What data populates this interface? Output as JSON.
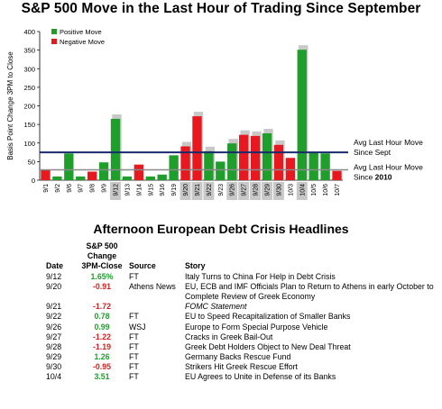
{
  "title": "S&P 500 Move in the Last Hour of Trading Since September",
  "chart_data": {
    "type": "bar",
    "ylabel": "Basis Point Change 3PM to Close",
    "ylim": [
      0,
      400
    ],
    "yticks": [
      0,
      50,
      100,
      150,
      200,
      250,
      300,
      350,
      400
    ],
    "categories": [
      "9/1",
      "9/2",
      "9/6",
      "9/7",
      "9/8",
      "9/9",
      "9/12",
      "9/13",
      "9/14",
      "9/15",
      "9/16",
      "9/19",
      "9/20",
      "9/21",
      "9/22",
      "9/23",
      "9/26",
      "9/27",
      "9/28",
      "9/29",
      "9/30",
      "10/3",
      "10/4",
      "10/5",
      "10/6",
      "10/7"
    ],
    "values": [
      28,
      10,
      72,
      10,
      23,
      48,
      165,
      10,
      42,
      10,
      15,
      67,
      91,
      172,
      78,
      50,
      99,
      122,
      119,
      126,
      95,
      60,
      351,
      75,
      72,
      25
    ],
    "directions": [
      "neg",
      "pos",
      "pos",
      "pos",
      "neg",
      "pos",
      "pos",
      "pos",
      "neg",
      "pos",
      "pos",
      "pos",
      "neg",
      "neg",
      "pos",
      "pos",
      "pos",
      "neg",
      "neg",
      "pos",
      "neg",
      "neg",
      "pos",
      "pos",
      "pos",
      "neg"
    ],
    "highlighted": [
      "9/12",
      "9/20",
      "9/21",
      "9/22",
      "9/26",
      "9/27",
      "9/28",
      "9/29",
      "9/30",
      "10/4"
    ],
    "legend": [
      {
        "label": "Positive Move",
        "color": "#1f9e2c"
      },
      {
        "label": "Negative Move",
        "color": "#e8181f"
      }
    ],
    "legend_position": "top-left",
    "reference_lines": [
      {
        "value": 75,
        "label_line1": "Avg Last Hour Move",
        "label_line2": "Since Sept",
        "color": "#1a2a6e"
      },
      {
        "value": 28,
        "label_line1": "Avg Last Hour Move",
        "label_line2": "Since 2010",
        "color": "#8a8a8a"
      }
    ],
    "grid": false
  },
  "headlines_title": "Afternoon European Debt Crisis Headlines",
  "table": {
    "header_change": [
      "S&P 500",
      "Change",
      "3PM-Close"
    ],
    "header_date": "Date",
    "header_source": "Source",
    "header_story": "Story",
    "rows": [
      {
        "date": "9/12",
        "change": "1.65%",
        "dir": "pos",
        "source": "FT",
        "story": "Italy Turns to China For Help in Debt Crisis",
        "italic": false
      },
      {
        "date": "9/20",
        "change": "-0.91",
        "dir": "neg",
        "source": "Athens News",
        "story": "EU, ECB and IMF Officials Plan to Return to Athens in early October to Complete Review of Greek Economy",
        "italic": false
      },
      {
        "date": "9/21",
        "change": "-1.72",
        "dir": "neg",
        "source": "",
        "story": "FOMC Statement",
        "italic": true
      },
      {
        "date": "9/22",
        "change": "0.78",
        "dir": "pos",
        "source": "FT",
        "story": "EU to Speed Recapitalization of Smaller Banks",
        "italic": false
      },
      {
        "date": "9/26",
        "change": "0.99",
        "dir": "pos",
        "source": "WSJ",
        "story": "Europe to Form Special Purpose Vehicle",
        "italic": false
      },
      {
        "date": "9/27",
        "change": "-1.22",
        "dir": "neg",
        "source": "FT",
        "story": "Cracks in Greek Bail-Out",
        "italic": false
      },
      {
        "date": "9/28",
        "change": "-1.19",
        "dir": "neg",
        "source": "FT",
        "story": "Greek Debt Holders Object to New Deal Threat",
        "italic": false
      },
      {
        "date": "9/29",
        "change": "1.26",
        "dir": "pos",
        "source": "FT",
        "story": "Germany Backs Rescue Fund",
        "italic": false
      },
      {
        "date": "9/30",
        "change": "-0.95",
        "dir": "neg",
        "source": "FT",
        "story": "Strikers Hit Greek Rescue Effort",
        "italic": false
      },
      {
        "date": "10/4",
        "change": "3.51",
        "dir": "pos",
        "source": "FT",
        "story": "EU Agrees to Unite in Defense of its Banks",
        "italic": false
      }
    ]
  },
  "colors": {
    "positive": "#1f9e2c",
    "negative": "#e8181f",
    "shadow": "#c8c8c8",
    "avg_sept": "#1a2a6e",
    "avg_2010": "#8a8a8a"
  }
}
